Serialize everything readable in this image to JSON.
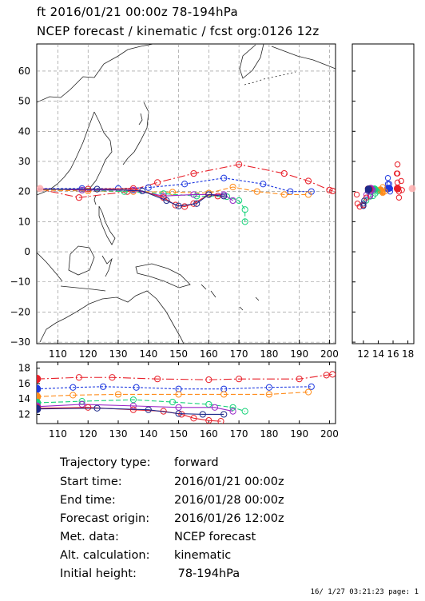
{
  "header": {
    "line1": "ft 2016/01/21 00:00z  78-194hPa",
    "line2": "NCEP forecast / kinematic / fcst org:0126 12z"
  },
  "chart_data": {
    "type": "scatter",
    "panels": [
      {
        "name": "map",
        "xlim": [
          103,
          202
        ],
        "ylim": [
          -30.5,
          69
        ],
        "xticks": [
          110,
          120,
          130,
          140,
          150,
          160,
          170,
          180,
          190,
          200
        ],
        "yticks": [
          -30,
          -20,
          -10,
          0,
          10,
          20,
          30,
          40,
          50,
          60
        ],
        "grid": true
      },
      {
        "name": "height",
        "xlim": [
          103,
          202
        ],
        "ylim": [
          10.8,
          18.8
        ],
        "yticks": [
          12,
          14,
          16,
          18
        ]
      },
      {
        "name": "side",
        "xlim": [
          10.5,
          18.8
        ],
        "xticks": [
          12,
          14,
          16,
          18
        ]
      }
    ],
    "series": [
      {
        "color": "#e8202a",
        "dash": "10,3,2,3",
        "points": [
          [
            103,
            21
          ],
          [
            117,
            18
          ],
          [
            133,
            20
          ],
          [
            143,
            23
          ],
          [
            155,
            26
          ],
          [
            170,
            29
          ],
          [
            185,
            26
          ],
          [
            193,
            23.5
          ],
          [
            200,
            20.5
          ],
          [
            201,
            20.2
          ]
        ],
        "heights": [
          [
            103,
            16.6
          ],
          [
            117,
            16.8
          ],
          [
            128,
            16.8
          ],
          [
            143,
            16.6
          ],
          [
            160,
            16.5
          ],
          [
            170,
            16.6
          ],
          [
            190,
            16.6
          ],
          [
            199,
            17.1
          ],
          [
            201,
            17.2
          ]
        ]
      },
      {
        "color": "#1f3ae0",
        "dash": "3,2",
        "points": [
          [
            103,
            21
          ],
          [
            118,
            21
          ],
          [
            130,
            21
          ],
          [
            140,
            21.3
          ],
          [
            152,
            22.5
          ],
          [
            165,
            24.5
          ],
          [
            178,
            22.5
          ],
          [
            187,
            20
          ],
          [
            194,
            20
          ]
        ],
        "heights": [
          [
            103,
            15.3
          ],
          [
            115,
            15.5
          ],
          [
            125,
            15.6
          ],
          [
            136,
            15.5
          ],
          [
            150,
            15.3
          ],
          [
            165,
            15.3
          ],
          [
            180,
            15.5
          ],
          [
            194,
            15.6
          ]
        ]
      },
      {
        "color": "#ff8c1a",
        "dash": "6,3",
        "points": [
          [
            103,
            20.5
          ],
          [
            120,
            20.2
          ],
          [
            135,
            20
          ],
          [
            148,
            19.8
          ],
          [
            160,
            19.5
          ],
          [
            168,
            21.5
          ],
          [
            176,
            20
          ],
          [
            185,
            19
          ],
          [
            193,
            19
          ]
        ],
        "heights": [
          [
            103,
            14.3
          ],
          [
            115,
            14.5
          ],
          [
            130,
            14.6
          ],
          [
            150,
            14.6
          ],
          [
            165,
            14.6
          ],
          [
            180,
            14.6
          ],
          [
            193,
            14.9
          ]
        ]
      },
      {
        "color": "#18d27a",
        "dash": "6,3",
        "points": [
          [
            103,
            20.8
          ],
          [
            118,
            20.5
          ],
          [
            132,
            20
          ],
          [
            145,
            19.3
          ],
          [
            156,
            18.5
          ],
          [
            166,
            18.3
          ],
          [
            170,
            17
          ],
          [
            172,
            14
          ],
          [
            172,
            10
          ]
        ],
        "heights": [
          [
            103,
            13.5
          ],
          [
            118,
            13.7
          ],
          [
            135,
            13.9
          ],
          [
            148,
            13.6
          ],
          [
            160,
            13.3
          ],
          [
            168,
            12.9
          ],
          [
            172,
            12.4
          ]
        ]
      },
      {
        "color": "#9a28c8",
        "dash": "",
        "points": [
          [
            103,
            21
          ],
          [
            118,
            20.5
          ],
          [
            135,
            20.5
          ],
          [
            145,
            18.5
          ],
          [
            155,
            19
          ],
          [
            165,
            19
          ],
          [
            168,
            17
          ]
        ],
        "heights": [
          [
            103,
            13.0
          ],
          [
            118,
            13.3
          ],
          [
            135,
            13.1
          ],
          [
            150,
            12.9
          ],
          [
            162,
            12.9
          ],
          [
            168,
            12.4
          ]
        ]
      },
      {
        "color": "#e8202a",
        "dash": "",
        "points": [
          [
            103,
            20.8
          ],
          [
            120,
            20.8
          ],
          [
            135,
            21
          ],
          [
            145,
            18
          ],
          [
            149,
            15.5
          ],
          [
            152,
            15
          ],
          [
            155,
            16
          ],
          [
            160,
            19
          ],
          [
            163,
            18.5
          ]
        ],
        "heights": [
          [
            103,
            12.8
          ],
          [
            120,
            12.9
          ],
          [
            135,
            12.6
          ],
          [
            145,
            12.4
          ],
          [
            151,
            12.0
          ],
          [
            155,
            11.5
          ],
          [
            160,
            11.2
          ],
          [
            164,
            11.1
          ]
        ]
      },
      {
        "color": "#1e2a8a",
        "dash": "",
        "points": [
          [
            103,
            20.8
          ],
          [
            123,
            20.8
          ],
          [
            138,
            20.2
          ],
          [
            146,
            17
          ],
          [
            150,
            15.2
          ],
          [
            156,
            16
          ],
          [
            160,
            19
          ],
          [
            165,
            18.5
          ]
        ],
        "heights": [
          [
            103,
            12.7
          ],
          [
            123,
            12.8
          ],
          [
            140,
            12.6
          ],
          [
            150,
            12.1
          ],
          [
            158,
            12.0
          ],
          [
            165,
            12.0
          ]
        ]
      }
    ]
  },
  "info": [
    {
      "label": "Trajectory type:",
      "value": "forward"
    },
    {
      "label": "Start time:",
      "value": "2016/01/21 00:00z"
    },
    {
      "label": "End time:",
      "value": "2016/01/28 00:00z"
    },
    {
      "label": "Forecast origin:",
      "value": "2016/01/26 12:00z"
    },
    {
      "label": "Met. data:",
      "value": "NCEP forecast"
    },
    {
      "label": "Alt. calculation:",
      "value": "kinematic"
    },
    {
      "label": "Initial height:",
      "value": " 78-194hPa"
    }
  ],
  "footer": "16/ 1/27 03:21:23 page: 1"
}
